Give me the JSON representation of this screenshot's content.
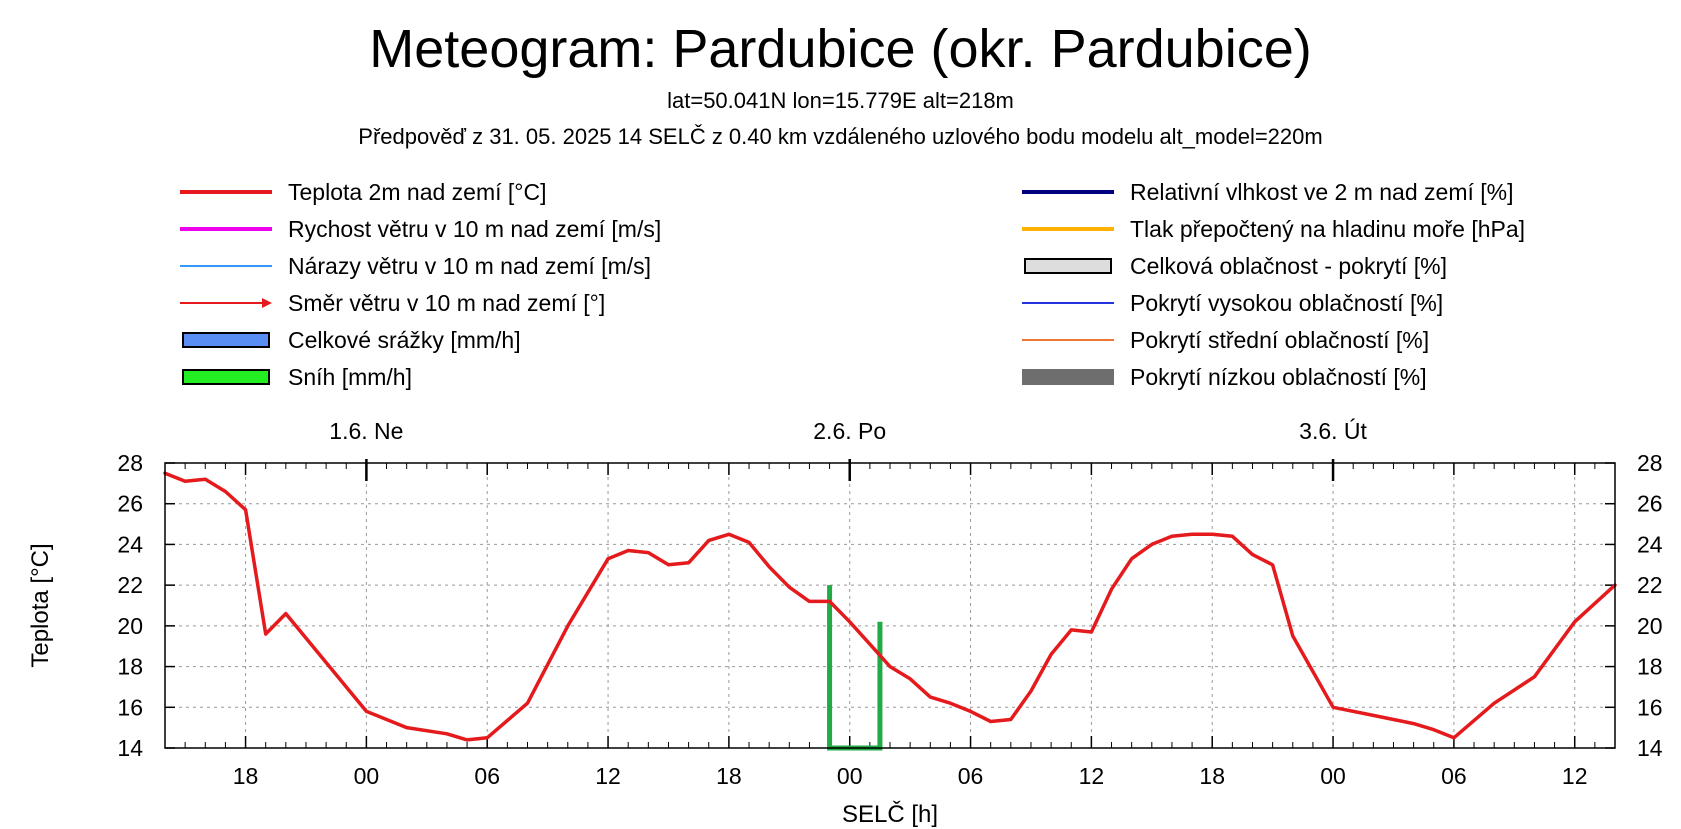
{
  "header": {
    "title": "Meteogram: Pardubice (okr. Pardubice)",
    "location_line": "lat=50.041N lon=15.779E alt=218m",
    "forecast_line": "Předpověď z 31. 05. 2025 14 SELČ z 0.40 km vzdáleného uzlového bodu modelu alt_model=220m"
  },
  "legend": {
    "left": [
      {
        "label": "Teplota 2m nad zemí [°C]",
        "color": "#e41a1c",
        "symbol": "thick-line"
      },
      {
        "label": "Rychost větru v 10 m nad zemí [m/s]",
        "color": "#ee00ee",
        "symbol": "thick-line"
      },
      {
        "label": "Nárazy větru v 10 m nad zemí [m/s]",
        "color": "#3399ff",
        "symbol": "thin-line"
      },
      {
        "label": "Směr větru v 10 m nad zemí [°]",
        "color": "#e41a1c",
        "symbol": "arrow"
      },
      {
        "label": "Celkové srážky [mm/h]",
        "color": "#5a8ef2",
        "symbol": "box"
      },
      {
        "label": "Sníh [mm/h]",
        "color": "#22ee22",
        "symbol": "box"
      }
    ],
    "right": [
      {
        "label": "Relativní vlhkost ve 2 m nad zemí [%]",
        "color": "#000080",
        "symbol": "thick-line"
      },
      {
        "label": "Tlak přepočtený na hladinu moře [hPa]",
        "color": "#ffb000",
        "symbol": "thick-line"
      },
      {
        "label": "Celková oblačnost - pokrytí [%]",
        "color": "#dddddd",
        "symbol": "box"
      },
      {
        "label": "Pokrytí vysokou oblačností [%]",
        "color": "#2233dd",
        "symbol": "thin-line"
      },
      {
        "label": "Pokrytí střední oblačností [%]",
        "color": "#ee7733",
        "symbol": "thin-line"
      },
      {
        "label": "Pokrytí nízkou oblačností [%]",
        "color": "#6e6e6e",
        "symbol": "bar"
      }
    ]
  },
  "chart_data": {
    "type": "line",
    "xlabel": "SELČ [h]",
    "ylabel": "Teplota [°C]",
    "ylim": [
      14,
      28
    ],
    "yticks": [
      14,
      16,
      18,
      20,
      22,
      24,
      26,
      28
    ],
    "xlim": [
      "2025-05-31 14:00",
      "2025-06-03 14:00"
    ],
    "xtick_labels": [
      "18",
      "00",
      "06",
      "12",
      "18",
      "00",
      "06",
      "12",
      "18",
      "00",
      "06",
      "12"
    ],
    "day_labels": [
      "1.6. Ne",
      "2.6. Po",
      "3.6. Út"
    ],
    "grid": true,
    "series": [
      {
        "name": "Teplota 2m nad zemí [°C]",
        "color": "#e41a1c",
        "x": [
          "2025-05-31 14:00",
          "2025-05-31 15:00",
          "2025-05-31 16:00",
          "2025-05-31 17:00",
          "2025-05-31 18:00",
          "2025-05-31 19:00",
          "2025-05-31 20:00",
          "2025-05-31 22:00",
          "2025-06-01 00:00",
          "2025-06-01 02:00",
          "2025-06-01 04:00",
          "2025-06-01 05:00",
          "2025-06-01 06:00",
          "2025-06-01 08:00",
          "2025-06-01 10:00",
          "2025-06-01 12:00",
          "2025-06-01 13:00",
          "2025-06-01 14:00",
          "2025-06-01 15:00",
          "2025-06-01 16:00",
          "2025-06-01 17:00",
          "2025-06-01 18:00",
          "2025-06-01 19:00",
          "2025-06-01 20:00",
          "2025-06-01 21:00",
          "2025-06-01 22:00",
          "2025-06-01 23:00",
          "2025-06-02 00:00",
          "2025-06-02 01:00",
          "2025-06-02 02:00",
          "2025-06-02 03:00",
          "2025-06-02 04:00",
          "2025-06-02 05:00",
          "2025-06-02 06:00",
          "2025-06-02 07:00",
          "2025-06-02 08:00",
          "2025-06-02 09:00",
          "2025-06-02 10:00",
          "2025-06-02 11:00",
          "2025-06-02 12:00",
          "2025-06-02 13:00",
          "2025-06-02 14:00",
          "2025-06-02 15:00",
          "2025-06-02 16:00",
          "2025-06-02 17:00",
          "2025-06-02 18:00",
          "2025-06-02 19:00",
          "2025-06-02 20:00",
          "2025-06-02 21:00",
          "2025-06-02 22:00",
          "2025-06-03 00:00",
          "2025-06-03 02:00",
          "2025-06-03 04:00",
          "2025-06-03 05:00",
          "2025-06-03 06:00",
          "2025-06-03 08:00",
          "2025-06-03 10:00",
          "2025-06-03 12:00",
          "2025-06-03 14:00"
        ],
        "y": [
          27.5,
          27.1,
          27.2,
          26.6,
          25.7,
          19.6,
          20.6,
          18.2,
          15.8,
          15.0,
          14.7,
          14.4,
          14.5,
          16.2,
          20.0,
          23.3,
          23.7,
          23.6,
          23.0,
          23.1,
          24.2,
          24.5,
          24.1,
          22.9,
          21.9,
          21.2,
          21.2,
          20.2,
          19.1,
          18.0,
          17.4,
          16.5,
          16.2,
          15.8,
          15.3,
          15.4,
          16.8,
          18.6,
          19.8,
          19.7,
          21.8,
          23.3,
          24.0,
          24.4,
          24.5,
          24.5,
          24.4,
          23.5,
          23.0,
          19.5,
          16.0,
          15.6,
          15.2,
          14.9,
          14.5,
          16.2,
          17.5,
          20.2,
          22.0
        ]
      }
    ],
    "precipitation_bars": [
      {
        "series": "Sníh [mm/h]",
        "start": "2025-06-01 23:00",
        "end": "2025-06-02 01:30",
        "left_top": 22.0,
        "right_top": 20.2,
        "color": "#22aa44"
      }
    ]
  },
  "axis": {
    "y_left_label": "Teplota [°C]",
    "x_label": "SELČ [h]"
  }
}
